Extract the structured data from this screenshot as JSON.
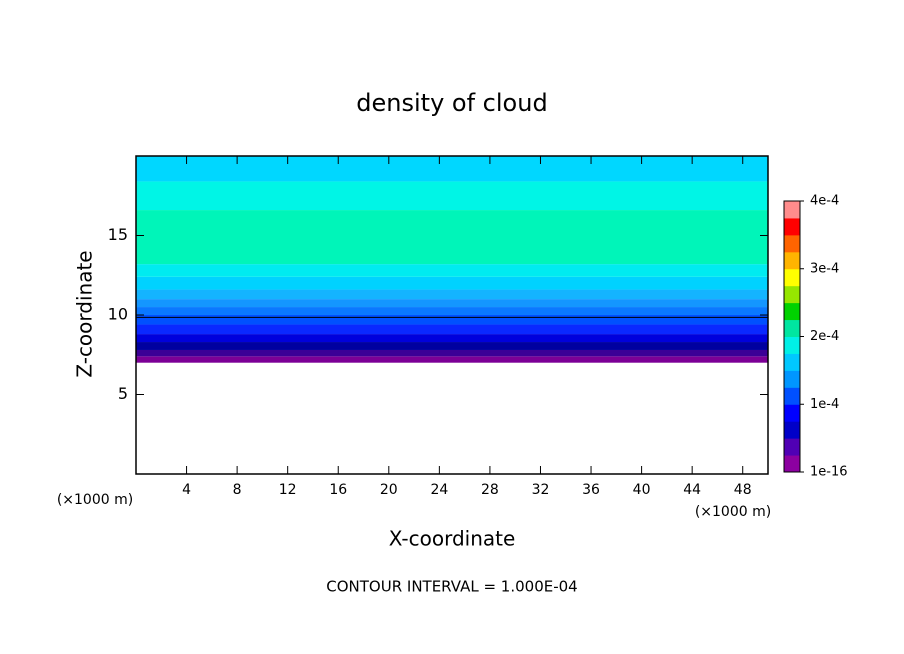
{
  "chart_data": {
    "type": "contour",
    "title": "density of cloud",
    "x_label": "X-coordinate",
    "y_label": "Z-coordinate",
    "x_unit": "(×1000 m)",
    "y_unit": "(×1000 m)",
    "footer": "CONTOUR INTERVAL = 1.000E-04",
    "xlim": [
      0,
      50
    ],
    "xticks": [
      4,
      8,
      12,
      16,
      20,
      24,
      28,
      32,
      36,
      40,
      44,
      48
    ],
    "ylim": [
      0,
      20
    ],
    "yticks": [
      5,
      10,
      15
    ],
    "bands": {
      "z": [
        7.0,
        7.4,
        7.8,
        8.3,
        8.8,
        9.4,
        10.0,
        10.5,
        11.0,
        11.6,
        12.4,
        13.2,
        16.6,
        18.4,
        20
      ],
      "colors": [
        "#7c0096",
        "#3c0096",
        "#0000a0",
        "#0000dc",
        "#0a28ff",
        "#0050ff",
        "#0a78ff",
        "#1496ff",
        "#14b4ff",
        "#00d2ff",
        "#00ebf0",
        "#00f5b9",
        "#00f5e6",
        "#00d7ff"
      ]
    },
    "contour_line_z": 9.85,
    "colorbar": {
      "lim": [
        0,
        0.0004
      ],
      "ticks": [
        {
          "value": 1e-16,
          "label": "1e-16"
        },
        {
          "value": 0.0001,
          "label": "1e-4"
        },
        {
          "value": 0.0002,
          "label": "2e-4"
        },
        {
          "value": 0.0003,
          "label": "3e-4"
        },
        {
          "value": 0.0004,
          "label": "4e-4"
        }
      ],
      "colors": [
        "#8c00a0",
        "#5000b4",
        "#0000c8",
        "#0000ff",
        "#0050ff",
        "#0096ff",
        "#00c8ff",
        "#00f0e6",
        "#00e6a0",
        "#00d200",
        "#96e600",
        "#ffff00",
        "#ffb400",
        "#ff6400",
        "#ff0000",
        "#ff8c8c"
      ]
    }
  }
}
